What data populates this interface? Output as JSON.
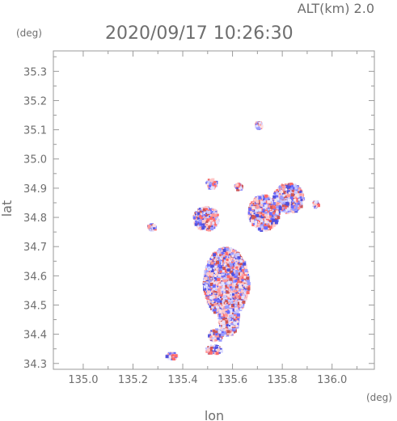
{
  "header": {
    "altitude_label": "ALT(km) 2.0",
    "timestamp": "2020/09/17 10:26:30"
  },
  "colors": {
    "frame": "#9a9a9a",
    "text": "#6e6e6e",
    "positive": "#ff7070",
    "negative": "#6a6aff"
  },
  "chart_data": {
    "type": "heatmap",
    "title": "2020/09/17 10:26:30",
    "subtitle": "ALT(km) 2.0",
    "xlabel": "lon",
    "ylabel": "lat",
    "xunit": "(deg)",
    "yunit": "(deg)",
    "xlim": [
      134.88,
      136.17
    ],
    "ylim": [
      34.28,
      35.37
    ],
    "xticks": [
      "135.0",
      "135.2",
      "135.4",
      "135.6",
      "135.8",
      "136.0"
    ],
    "yticks": [
      "34.3",
      "34.4",
      "34.5",
      "34.6",
      "34.7",
      "34.8",
      "34.9",
      "35.0",
      "35.1",
      "35.2",
      "35.3"
    ],
    "grid": false,
    "clusters": [
      {
        "lon": 135.57,
        "lat": 34.58,
        "rlon": 0.09,
        "rlat": 0.12
      },
      {
        "lon": 135.58,
        "lat": 34.46,
        "rlon": 0.04,
        "rlat": 0.06
      },
      {
        "lon": 135.53,
        "lat": 34.4,
        "rlon": 0.03,
        "rlat": 0.02
      },
      {
        "lon": 135.72,
        "lat": 34.82,
        "rlon": 0.06,
        "rlat": 0.06
      },
      {
        "lon": 135.82,
        "lat": 34.87,
        "rlon": 0.06,
        "rlat": 0.05
      },
      {
        "lon": 135.49,
        "lat": 34.8,
        "rlon": 0.05,
        "rlat": 0.04
      },
      {
        "lon": 135.51,
        "lat": 34.92,
        "rlon": 0.02,
        "rlat": 0.015
      },
      {
        "lon": 135.62,
        "lat": 34.91,
        "rlon": 0.015,
        "rlat": 0.01
      },
      {
        "lon": 135.7,
        "lat": 35.12,
        "rlon": 0.012,
        "rlat": 0.01
      },
      {
        "lon": 135.35,
        "lat": 34.33,
        "rlon": 0.02,
        "rlat": 0.01
      },
      {
        "lon": 135.52,
        "lat": 34.35,
        "rlon": 0.03,
        "rlat": 0.015
      },
      {
        "lon": 135.27,
        "lat": 34.77,
        "rlon": 0.015,
        "rlat": 0.01
      },
      {
        "lon": 135.93,
        "lat": 34.85,
        "rlon": 0.01,
        "rlat": 0.01
      }
    ]
  }
}
